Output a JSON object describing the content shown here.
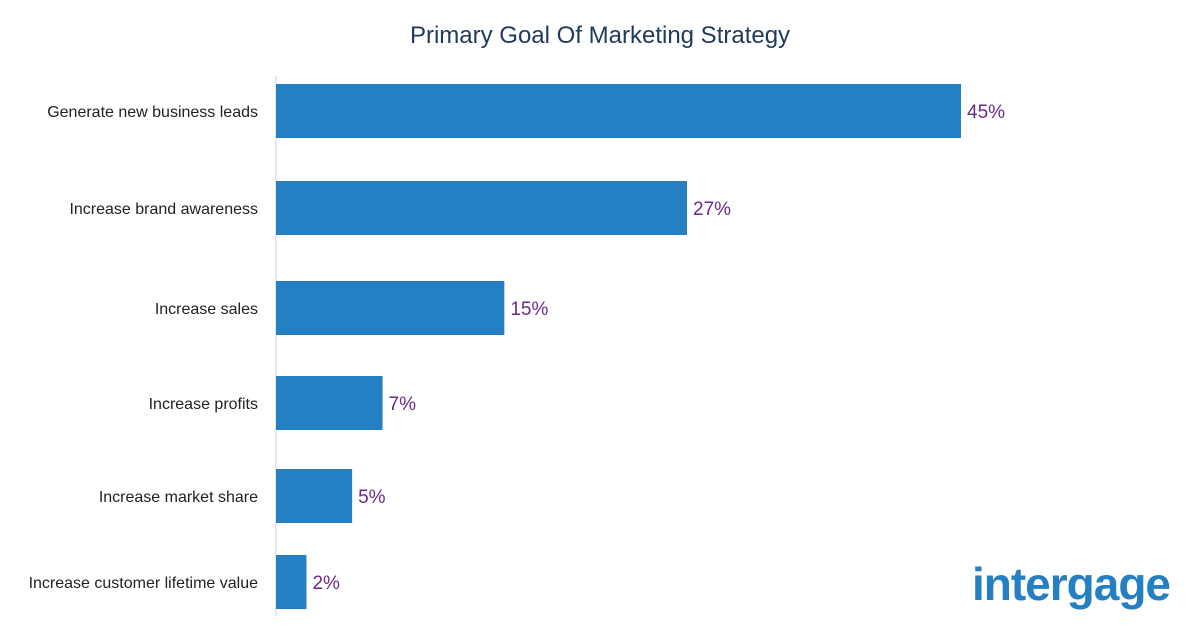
{
  "chart_data": {
    "type": "bar",
    "orientation": "horizontal",
    "title": "Primary Goal Of Marketing Strategy",
    "categories": [
      "Generate new business leads",
      "Increase brand awareness",
      "Increase sales",
      "Increase profits",
      "Increase market share",
      "Increase customer lifetime value"
    ],
    "values": [
      45,
      27,
      15,
      7,
      5,
      2
    ],
    "value_labels": [
      "45%",
      "27%",
      "15%",
      "7%",
      "5%",
      "2%"
    ],
    "xlim": [
      0,
      45
    ],
    "grid": false,
    "legend": "none",
    "colors": {
      "bar": "#2580c3",
      "value_label": "#6a2a8a",
      "title": "#1f3a5a",
      "category_label": "#222222",
      "axis": "#cfcfcf"
    }
  },
  "brand": {
    "logo_text": "intergage",
    "logo_color": "#2580c3"
  }
}
